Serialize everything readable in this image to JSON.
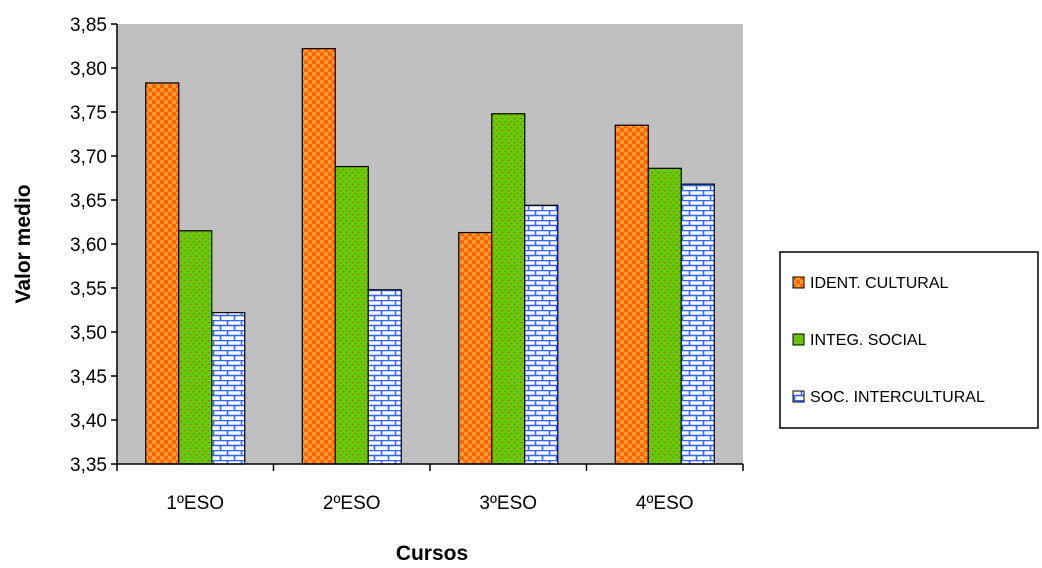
{
  "chart_data": {
    "type": "bar",
    "categories": [
      "1ºESO",
      "2ºESO",
      "3ºESO",
      "4ºESO"
    ],
    "series": [
      {
        "name": "IDENT. CULTURAL",
        "values": [
          3.783,
          3.822,
          3.613,
          3.735
        ],
        "color": "#ff6600",
        "pattern": "checker"
      },
      {
        "name": "INTEG. SOCIAL",
        "values": [
          3.615,
          3.688,
          3.748,
          3.686
        ],
        "color": "#66cc00",
        "pattern": "dots"
      },
      {
        "name": "SOC. INTERCULTURAL",
        "values": [
          3.522,
          3.548,
          3.644,
          3.668
        ],
        "color": "#3366ff",
        "pattern": "brick"
      }
    ],
    "ylim": [
      3.35,
      3.85
    ],
    "yticks": [
      "3,35",
      "3,40",
      "3,45",
      "3,50",
      "3,55",
      "3,60",
      "3,65",
      "3,70",
      "3,75",
      "3,80",
      "3,85"
    ],
    "xlabel": "Cursos",
    "ylabel": "Valor medio",
    "plot_background": "#c0c0c0",
    "grid": false,
    "legend_position": "right"
  }
}
